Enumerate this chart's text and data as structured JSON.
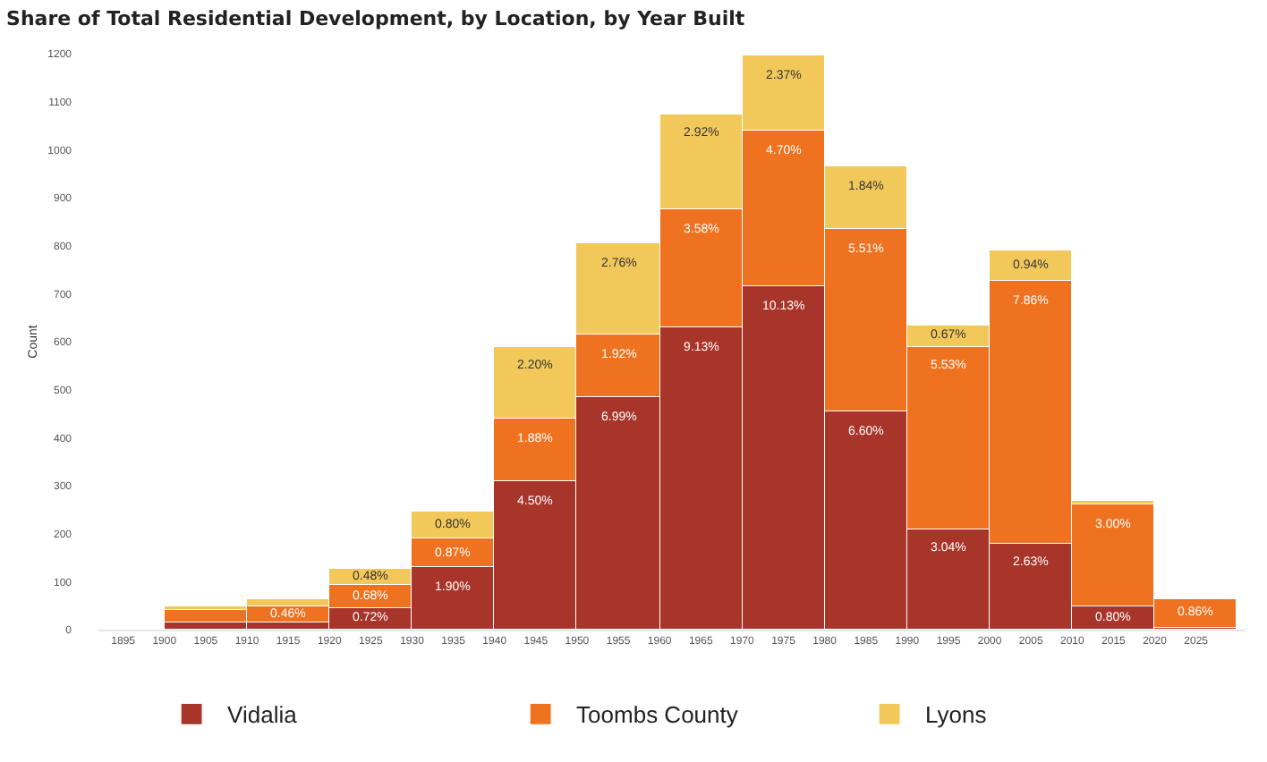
{
  "chart_data": {
    "type": "bar",
    "title": "Share of Total Residential Development, by Location, by Year Built",
    "ylabel": "Count",
    "stacked": true,
    "x": [
      1905,
      1915,
      1925,
      1935,
      1945,
      1955,
      1965,
      1975,
      1985,
      1995,
      2005,
      2015,
      2025
    ],
    "series": [
      {
        "name": "Vidalia",
        "color": "#a8352a",
        "values": [
          15,
          15,
          45,
          130,
          310,
          485,
          630,
          715,
          455,
          210,
          180,
          50,
          5
        ]
      },
      {
        "name": "Toombs County",
        "color": "#ee7220",
        "values": [
          25,
          35,
          50,
          60,
          130,
          130,
          245,
          325,
          380,
          380,
          545,
          210,
          60
        ]
      },
      {
        "name": "Lyons",
        "color": "#f2c85b",
        "values": [
          10,
          15,
          30,
          55,
          150,
          190,
          200,
          155,
          130,
          45,
          65,
          10,
          null
        ]
      }
    ],
    "annotations": [
      {
        "text": "0.72%",
        "x": 1925,
        "y": 45
      },
      {
        "text": "1.90%",
        "x": 1935,
        "y": 130
      },
      {
        "text": "4.50%",
        "x": 1945,
        "y": 310
      },
      {
        "text": "6.99%",
        "x": 1955,
        "y": 485
      },
      {
        "text": "9.13%",
        "x": 1965,
        "y": 630
      },
      {
        "text": "10.13%",
        "x": 1975,
        "y": 715
      },
      {
        "text": "6.60%",
        "x": 1985,
        "y": 455
      },
      {
        "text": "3.04%",
        "x": 1995,
        "y": 210
      },
      {
        "text": "2.63%",
        "x": 2005,
        "y": 180
      },
      {
        "text": "0.80%",
        "x": 2015,
        "y": 50
      },
      {
        "text": "0.46%",
        "x": 1915,
        "y": 50
      },
      {
        "text": "0.68%",
        "x": 1925,
        "y": 95
      },
      {
        "text": "0.87%",
        "x": 1935,
        "y": 190
      },
      {
        "text": "1.88%",
        "x": 1945,
        "y": 440
      },
      {
        "text": "1.92%",
        "x": 1955,
        "y": 615
      },
      {
        "text": "3.58%",
        "x": 1965,
        "y": 875
      },
      {
        "text": "4.70%",
        "x": 1975,
        "y": 1040
      },
      {
        "text": "5.51%",
        "x": 1985,
        "y": 835
      },
      {
        "text": "5.53%",
        "x": 1995,
        "y": 590
      },
      {
        "text": "7.86%",
        "x": 2005,
        "y": 725
      },
      {
        "text": "3.00%",
        "x": 2015,
        "y": 260
      },
      {
        "text": "0.86%",
        "x": 2025,
        "y": 65
      },
      {
        "text": "0.48%",
        "x": 1925,
        "y": 125
      },
      {
        "text": "0.80%",
        "x": 1935,
        "y": 245
      },
      {
        "text": "2.20%",
        "x": 1945,
        "y": 590
      },
      {
        "text": "2.76%",
        "x": 1955,
        "y": 805
      },
      {
        "text": "2.92%",
        "x": 1965,
        "y": 1075
      },
      {
        "text": "2.37%",
        "x": 1975,
        "y": 1195
      },
      {
        "text": "1.84%",
        "x": 1985,
        "y": 965
      },
      {
        "text": "0.67%",
        "x": 1995,
        "y": 635
      },
      {
        "text": "0.94%",
        "x": 2005,
        "y": 790
      }
    ],
    "xlim": [
      1892,
      2031
    ],
    "xticks": [
      1895,
      1900,
      1905,
      1910,
      1915,
      1920,
      1925,
      1930,
      1935,
      1940,
      1945,
      1950,
      1955,
      1960,
      1965,
      1970,
      1975,
      1980,
      1985,
      1990,
      1995,
      2000,
      2005,
      2010,
      2015,
      2020,
      2025
    ],
    "ylim": [
      0,
      1200
    ],
    "yticks": [
      0,
      100,
      200,
      300,
      400,
      500,
      600,
      700,
      800,
      900,
      1000,
      1100,
      1200
    ],
    "grid": false,
    "legend": "bottom"
  }
}
